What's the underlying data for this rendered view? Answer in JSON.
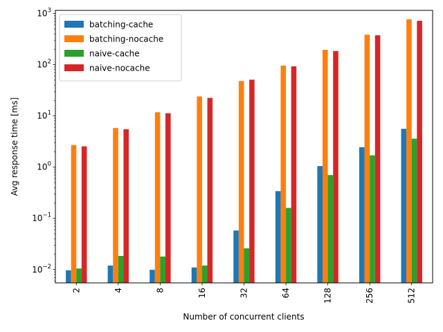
{
  "chart_data": {
    "type": "bar",
    "title": "",
    "xlabel": "Number of concurrent clients",
    "ylabel": "Avg response time [ms]",
    "categories": [
      "2",
      "4",
      "8",
      "16",
      "32",
      "64",
      "128",
      "256",
      "512"
    ],
    "yscale": "log",
    "ylim": [
      0.0055,
      1150
    ],
    "yticks": [
      {
        "value": 0.01,
        "base": "10",
        "exp": "−2"
      },
      {
        "value": 0.1,
        "base": "10",
        "exp": "−1"
      },
      {
        "value": 1,
        "base": "10",
        "exp": "0"
      },
      {
        "value": 10,
        "base": "10",
        "exp": "1"
      },
      {
        "value": 100,
        "base": "10",
        "exp": "2"
      },
      {
        "value": 1000,
        "base": "10",
        "exp": "3"
      }
    ],
    "grid": false,
    "legend_position": "top-left",
    "series": [
      {
        "name": "batching-cache",
        "color": "#1f77b4",
        "values": [
          0.0097,
          0.012,
          0.0099,
          0.011,
          0.058,
          0.34,
          1.05,
          2.45,
          5.6
        ]
      },
      {
        "name": "batching-nocache",
        "color": "#ff7f0e",
        "values": [
          2.7,
          5.8,
          11.8,
          24.0,
          48.0,
          96.0,
          195.0,
          385.0,
          770.0
        ]
      },
      {
        "name": "naive-cache",
        "color": "#2ca02c",
        "values": [
          0.0105,
          0.0185,
          0.018,
          0.012,
          0.026,
          0.16,
          0.7,
          1.7,
          3.6
        ]
      },
      {
        "name": "naive-nocache",
        "color": "#d62728",
        "values": [
          2.55,
          5.5,
          11.3,
          22.5,
          51.0,
          93.0,
          185.0,
          375.0,
          720.0
        ]
      }
    ]
  }
}
